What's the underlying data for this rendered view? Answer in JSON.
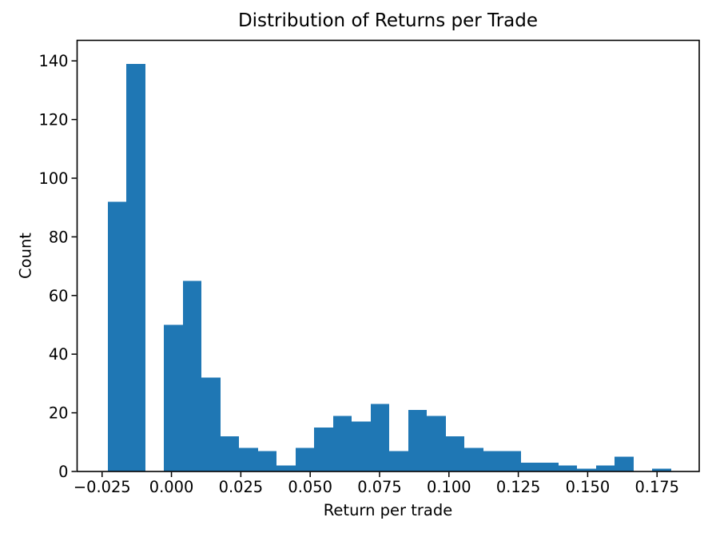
{
  "chart_data": {
    "type": "bar",
    "chart_kind": "histogram",
    "title": "Distribution of Returns per Trade",
    "xlabel": "Return per trade",
    "ylabel": "Count",
    "bar_color": "#1f77b4",
    "axis_color": "#000000",
    "background_color": "#ffffff",
    "grid": false,
    "bin_start": -0.023,
    "bin_width": 0.00677,
    "counts": [
      92,
      139,
      0,
      50,
      65,
      32,
      12,
      8,
      7,
      2,
      8,
      15,
      19,
      17,
      23,
      7,
      21,
      19,
      12,
      8,
      7,
      7,
      3,
      3,
      2,
      1,
      2,
      5,
      0,
      1
    ],
    "xlim": [
      -0.034,
      0.1902
    ],
    "ylim": [
      0,
      147
    ],
    "xticks": [
      -0.025,
      0.0,
      0.025,
      0.05,
      0.075,
      0.1,
      0.125,
      0.15,
      0.175
    ],
    "xtick_labels": [
      "−0.025",
      "0.000",
      "0.025",
      "0.050",
      "0.075",
      "0.100",
      "0.125",
      "0.150",
      "0.175"
    ],
    "yticks": [
      0,
      20,
      40,
      60,
      80,
      100,
      120,
      140
    ],
    "ytick_labels": [
      "0",
      "20",
      "40",
      "60",
      "80",
      "100",
      "120",
      "140"
    ]
  }
}
